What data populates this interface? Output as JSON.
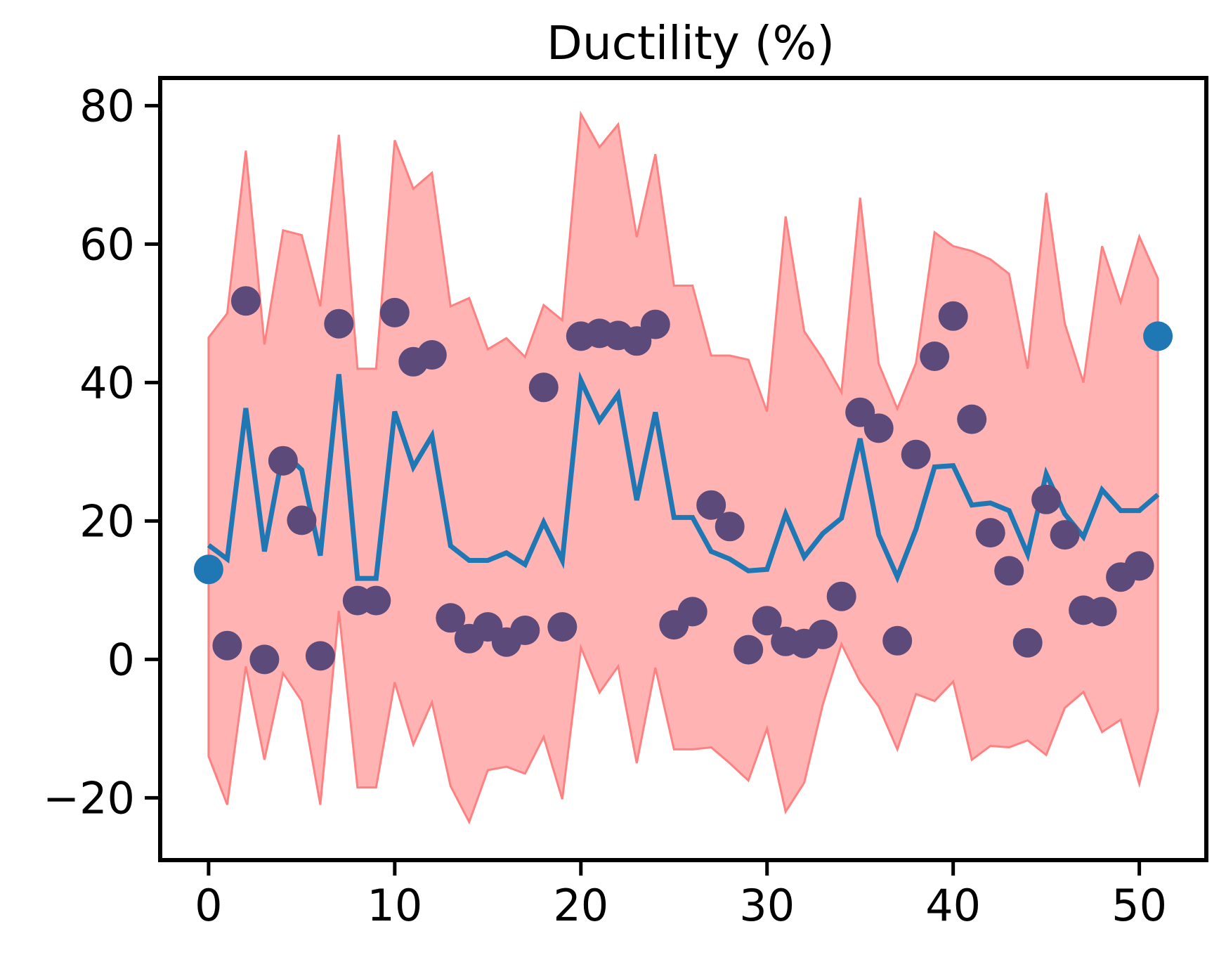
{
  "chart_data": {
    "type": "line",
    "title": "Ductility (%)",
    "xlabel": "",
    "ylabel": "",
    "xlim": [
      -2.6,
      53.6
    ],
    "ylim": [
      -29,
      84
    ],
    "xticks": [
      0,
      10,
      20,
      30,
      40,
      50
    ],
    "yticks": [
      -20,
      0,
      20,
      40,
      60,
      80
    ],
    "xtick_labels": [
      "0",
      "10",
      "20",
      "30",
      "40",
      "50"
    ],
    "ytick_labels": [
      "−20",
      "0",
      "20",
      "40",
      "60",
      "80"
    ],
    "grid": false,
    "legend": "none",
    "x": [
      0,
      1,
      2,
      3,
      4,
      5,
      6,
      7,
      8,
      9,
      10,
      11,
      12,
      13,
      14,
      15,
      16,
      17,
      18,
      19,
      20,
      21,
      22,
      23,
      24,
      25,
      26,
      27,
      28,
      29,
      30,
      31,
      32,
      33,
      34,
      35,
      36,
      37,
      38,
      39,
      40,
      41,
      42,
      43,
      44,
      45,
      46,
      47,
      48,
      49,
      50,
      51
    ],
    "band": {
      "color": "#ff8080",
      "opacity": 0.6,
      "upper": [
        46.5,
        50,
        73.5,
        45.5,
        62,
        61.3,
        51,
        75.8,
        42,
        42,
        75,
        68,
        70.3,
        51,
        52.2,
        44.8,
        46.4,
        43.7,
        51.2,
        49,
        78.8,
        74,
        77.3,
        61,
        73,
        54,
        54,
        43.9,
        43.9,
        43.3,
        35.8,
        64,
        47.4,
        43.4,
        38.6,
        66.7,
        42.7,
        36.2,
        42.8,
        61.7,
        59.7,
        59,
        57.8,
        55.7,
        42,
        67.4,
        48.5,
        40,
        59.7,
        51.6,
        61.1,
        55
      ],
      "lower": [
        -14,
        -21,
        -1,
        -14.5,
        -2,
        -6,
        -21,
        7,
        -18.5,
        -18.5,
        -3.3,
        -12.3,
        -6.2,
        -18.3,
        -23.5,
        -16,
        -15.5,
        -16.5,
        -11.2,
        -20.2,
        1.7,
        -4.8,
        -1,
        -15,
        -1.2,
        -13,
        -13,
        -12.7,
        -15,
        -17.5,
        -10,
        -22,
        -17.8,
        -6.5,
        2.2,
        -3.2,
        -6.8,
        -13,
        -5,
        -6,
        -3.2,
        -14.5,
        -12.5,
        -12.7,
        -11.7,
        -13.8,
        -7,
        -4.7,
        -10.5,
        -8.7,
        -18,
        -7.3
      ]
    },
    "series": [
      {
        "kind": "line",
        "color": "#1f77b4",
        "values": [
          16.5,
          14.5,
          36.3,
          15.6,
          30,
          27.4,
          15,
          41.2,
          11.7,
          11.7,
          35.8,
          27.8,
          32.3,
          16.4,
          14.3,
          14.3,
          15.4,
          13.7,
          19.8,
          14.3,
          40.3,
          34.5,
          38.3,
          23,
          35.7,
          20.5,
          20.5,
          15.6,
          14.5,
          12.8,
          13,
          21,
          14.8,
          18.2,
          20.4,
          31.9,
          18,
          11.9,
          18.8,
          27.8,
          28,
          22.3,
          22.6,
          21.5,
          15.2,
          26.8,
          21,
          17.7,
          24.5,
          21.5,
          21.5,
          23.8
        ]
      },
      {
        "kind": "scatter",
        "color": "#5c4a7a",
        "values": [
          13,
          2,
          51.8,
          0,
          28.7,
          20.1,
          0.5,
          48.5,
          8.5,
          8.5,
          50.1,
          43,
          44,
          6,
          3,
          4.7,
          2.5,
          4.2,
          39.3,
          4.7,
          46.7,
          47.1,
          46.8,
          46,
          48.4,
          5,
          6.9,
          22.3,
          19.2,
          1.4,
          5.6,
          2.6,
          2.3,
          3.6,
          9.1,
          35.7,
          33.4,
          2.7,
          29.6,
          43.8,
          49.6,
          34.7,
          18.3,
          12.8,
          2.4,
          23.1,
          18,
          7.1,
          6.9,
          11.9,
          13.5,
          46.7
        ]
      }
    ],
    "highlighted_points": [
      {
        "x": 0,
        "y": 13,
        "color": "#1f77b4"
      },
      {
        "x": 51,
        "y": 46.7,
        "color": "#1f77b4"
      }
    ]
  }
}
